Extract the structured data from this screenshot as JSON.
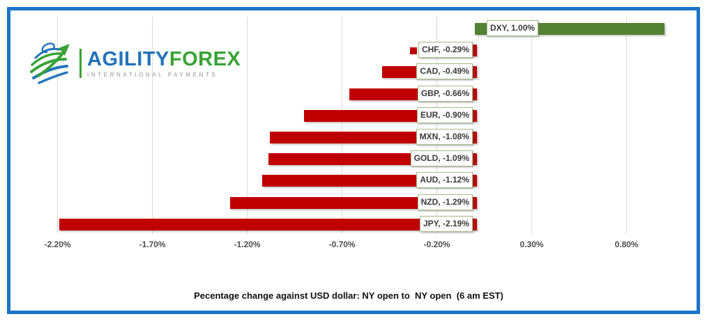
{
  "logo": {
    "brand_primary": "AGILITY",
    "brand_secondary": "FOREX",
    "tagline": "INTERNATIONAL PAYMENTS",
    "brand_primary_color": "#2273B9",
    "brand_secondary_color": "#38A336"
  },
  "frame": {
    "border_color": "#1B74C6"
  },
  "chart_data": {
    "type": "bar",
    "orientation": "horizontal",
    "title": "Pecentage change against USD dollar: NY open to  NY open  (6 am EST)",
    "categories": [
      "DXY",
      "CHF",
      "CAD",
      "GBP",
      "EUR",
      "MXN",
      "GOLD",
      "AUD",
      "NZD",
      "JPY"
    ],
    "values": [
      1.0,
      -0.29,
      -0.49,
      -0.66,
      -0.9,
      -1.08,
      -1.09,
      -1.12,
      -1.29,
      -2.19
    ],
    "bar_labels": [
      "DXY, 1.00%",
      "CHF, -0.29%",
      "CAD, -0.49%",
      "GBP, -0.66%",
      "EUR, -0.90%",
      "MXN, -1.08%",
      "GOLD, -1.09%",
      "AUD, -1.12%",
      "NZD, -1.29%",
      "JPY, -2.19%"
    ],
    "x_ticks": [
      "-2.20%",
      "-1.70%",
      "-1.20%",
      "-0.70%",
      "-0.20%",
      "0.30%",
      "0.80%"
    ],
    "x_tick_values": [
      -2.2,
      -1.7,
      -1.2,
      -0.7,
      -0.2,
      0.3,
      0.8
    ],
    "xlim": [
      -2.35,
      1.05
    ],
    "grid": true,
    "legend": "none",
    "positive_color": "#548235",
    "negative_color": "#C00000",
    "label_box_border_color": "#A2BE84",
    "gridline_color": "#D9D9D9"
  }
}
